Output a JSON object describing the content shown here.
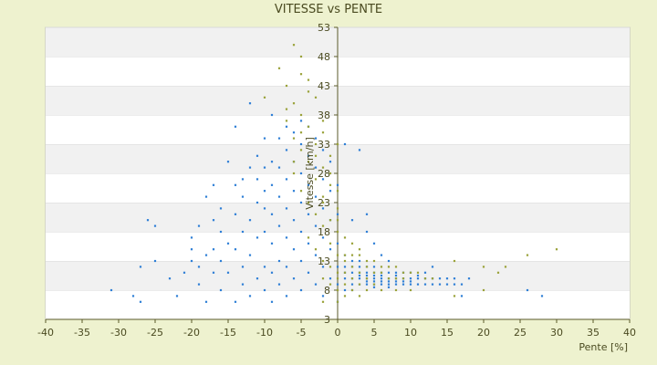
{
  "chart_data": {
    "type": "scatter",
    "title": "VITESSE vs PENTE",
    "xlabel": "Pente [%]",
    "ylabel": "Vitesse [km/h]",
    "xlim": [
      -40,
      40
    ],
    "ylim": [
      3,
      53
    ],
    "x_ticks": [
      "-40",
      "-35",
      "-30",
      "-25",
      "-20",
      "-15",
      "-10",
      "-5",
      "0",
      "5",
      "10",
      "15",
      "20",
      "25",
      "30",
      "35",
      "40"
    ],
    "y_ticks": [
      "3",
      "8",
      "13",
      "18",
      "23",
      "28",
      "33",
      "38",
      "43",
      "48",
      "53"
    ],
    "grid": true,
    "legend": "none",
    "series": [
      {
        "color": "#2f7fd6",
        "points": [
          [
            -31,
            8
          ],
          [
            -28,
            7
          ],
          [
            -27,
            6
          ],
          [
            -27,
            12
          ],
          [
            -26,
            20
          ],
          [
            -25,
            19
          ],
          [
            -25,
            13
          ],
          [
            -23,
            10
          ],
          [
            -22,
            7
          ],
          [
            -21,
            11
          ],
          [
            -20,
            13
          ],
          [
            -20,
            15
          ],
          [
            -20,
            17
          ],
          [
            -19,
            9
          ],
          [
            -19,
            12
          ],
          [
            -19,
            19
          ],
          [
            -18,
            6
          ],
          [
            -18,
            14
          ],
          [
            -18,
            24
          ],
          [
            -17,
            11
          ],
          [
            -17,
            15
          ],
          [
            -17,
            20
          ],
          [
            -17,
            26
          ],
          [
            -16,
            8
          ],
          [
            -16,
            13
          ],
          [
            -16,
            18
          ],
          [
            -16,
            22
          ],
          [
            -15,
            11
          ],
          [
            -15,
            16
          ],
          [
            -15,
            30
          ],
          [
            -14,
            6
          ],
          [
            -14,
            15
          ],
          [
            -14,
            21
          ],
          [
            -14,
            26
          ],
          [
            -13,
            9
          ],
          [
            -13,
            12
          ],
          [
            -13,
            18
          ],
          [
            -13,
            24
          ],
          [
            -13,
            27
          ],
          [
            -12,
            7
          ],
          [
            -12,
            14
          ],
          [
            -12,
            20
          ],
          [
            -12,
            29
          ],
          [
            -11,
            10
          ],
          [
            -11,
            17
          ],
          [
            -11,
            23
          ],
          [
            -11,
            27
          ],
          [
            -11,
            31
          ],
          [
            -10,
            8
          ],
          [
            -10,
            12
          ],
          [
            -10,
            18
          ],
          [
            -10,
            22
          ],
          [
            -10,
            25
          ],
          [
            -10,
            29
          ],
          [
            -10,
            34
          ],
          [
            -9,
            6
          ],
          [
            -9,
            11
          ],
          [
            -9,
            16
          ],
          [
            -9,
            21
          ],
          [
            -9,
            26
          ],
          [
            -9,
            30
          ],
          [
            -9,
            38
          ],
          [
            -8,
            9
          ],
          [
            -8,
            13
          ],
          [
            -8,
            19
          ],
          [
            -8,
            24
          ],
          [
            -8,
            29
          ],
          [
            -8,
            34
          ],
          [
            -7,
            7
          ],
          [
            -7,
            12
          ],
          [
            -7,
            17
          ],
          [
            -7,
            22
          ],
          [
            -7,
            27
          ],
          [
            -7,
            32
          ],
          [
            -7,
            36
          ],
          [
            -6,
            10
          ],
          [
            -6,
            15
          ],
          [
            -6,
            20
          ],
          [
            -6,
            25
          ],
          [
            -6,
            30
          ],
          [
            -6,
            35
          ],
          [
            -5,
            8
          ],
          [
            -5,
            13
          ],
          [
            -5,
            18
          ],
          [
            -5,
            23
          ],
          [
            -5,
            28
          ],
          [
            -5,
            33
          ],
          [
            -5,
            37
          ],
          [
            -4,
            11
          ],
          [
            -4,
            16
          ],
          [
            -4,
            21
          ],
          [
            -4,
            26
          ],
          [
            -4,
            31
          ],
          [
            -4,
            36
          ],
          [
            -3,
            9
          ],
          [
            -3,
            14
          ],
          [
            -3,
            19
          ],
          [
            -3,
            24
          ],
          [
            -3,
            29
          ],
          [
            -3,
            34
          ],
          [
            -2,
            7
          ],
          [
            -2,
            12
          ],
          [
            -2,
            17
          ],
          [
            -2,
            22
          ],
          [
            -2,
            27
          ],
          [
            -2,
            32
          ],
          [
            -1,
            10
          ],
          [
            -1,
            15
          ],
          [
            -1,
            20
          ],
          [
            -1,
            25
          ],
          [
            -1,
            30
          ],
          [
            0,
            6
          ],
          [
            0,
            9
          ],
          [
            0,
            12
          ],
          [
            0,
            16
          ],
          [
            0,
            21
          ],
          [
            0,
            26
          ],
          [
            1,
            8
          ],
          [
            1,
            10
          ],
          [
            1,
            12
          ],
          [
            1,
            14
          ],
          [
            1,
            11
          ],
          [
            2,
            9
          ],
          [
            2,
            10
          ],
          [
            2,
            11
          ],
          [
            2,
            12
          ],
          [
            2,
            13
          ],
          [
            2,
            8
          ],
          [
            3,
            9
          ],
          [
            3,
            10
          ],
          [
            3,
            11
          ],
          [
            3,
            12
          ],
          [
            3,
            13
          ],
          [
            3,
            10.5
          ],
          [
            4,
            9
          ],
          [
            4,
            10
          ],
          [
            4,
            11
          ],
          [
            4,
            12
          ],
          [
            4,
            9.5
          ],
          [
            4,
            10.5
          ],
          [
            5,
            8.5
          ],
          [
            5,
            9
          ],
          [
            5,
            10
          ],
          [
            5,
            11
          ],
          [
            5,
            12
          ],
          [
            5,
            9.5
          ],
          [
            5,
            10.5
          ],
          [
            6,
            9
          ],
          [
            6,
            10
          ],
          [
            6,
            11
          ],
          [
            6,
            9.5
          ],
          [
            6,
            10.5
          ],
          [
            7,
            8.5
          ],
          [
            7,
            9
          ],
          [
            7,
            10
          ],
          [
            7,
            11
          ],
          [
            7,
            9.5
          ],
          [
            8,
            9
          ],
          [
            8,
            10
          ],
          [
            8,
            11
          ],
          [
            8,
            9.5
          ],
          [
            8,
            10.5
          ],
          [
            9,
            9
          ],
          [
            9,
            10
          ],
          [
            9,
            11
          ],
          [
            9,
            9.5
          ],
          [
            10,
            9
          ],
          [
            10,
            10
          ],
          [
            10,
            11
          ],
          [
            10,
            9.5
          ],
          [
            11,
            9
          ],
          [
            11,
            10
          ],
          [
            11,
            10.5
          ],
          [
            12,
            9
          ],
          [
            12,
            10
          ],
          [
            12,
            11
          ],
          [
            13,
            9
          ],
          [
            13,
            10
          ],
          [
            13,
            12
          ],
          [
            14,
            9
          ],
          [
            14,
            10
          ],
          [
            15,
            9
          ],
          [
            15,
            10
          ],
          [
            16,
            9
          ],
          [
            16,
            10
          ],
          [
            17,
            9
          ],
          [
            17,
            7
          ],
          [
            18,
            10
          ],
          [
            3,
            32
          ],
          [
            1,
            33
          ],
          [
            2,
            20
          ],
          [
            4,
            18
          ],
          [
            4,
            21
          ],
          [
            5,
            16
          ],
          [
            6,
            14
          ],
          [
            7,
            13
          ],
          [
            26,
            8
          ],
          [
            28,
            7
          ],
          [
            -12,
            40
          ],
          [
            -14,
            36
          ]
        ]
      },
      {
        "color": "#9aa23a",
        "points": [
          [
            -6,
            50
          ],
          [
            -8,
            46
          ],
          [
            -5,
            48
          ],
          [
            -4,
            44
          ],
          [
            -7,
            43
          ],
          [
            -10,
            41
          ],
          [
            -6,
            40
          ],
          [
            -3,
            41
          ],
          [
            -5,
            38
          ],
          [
            -7,
            37
          ],
          [
            -4,
            36
          ],
          [
            -2,
            35
          ],
          [
            -6,
            34
          ],
          [
            -3,
            33
          ],
          [
            -5,
            32
          ],
          [
            -1,
            31
          ],
          [
            -4,
            30
          ],
          [
            -2,
            29
          ],
          [
            -6,
            28
          ],
          [
            -3,
            27
          ],
          [
            -1,
            26
          ],
          [
            -5,
            25
          ],
          [
            -2,
            24
          ],
          [
            -4,
            23
          ],
          [
            0,
            22
          ],
          [
            -3,
            21
          ],
          [
            -1,
            20
          ],
          [
            -2,
            19
          ],
          [
            0,
            18
          ],
          [
            -4,
            17
          ],
          [
            -1,
            16
          ],
          [
            -3,
            15
          ],
          [
            0,
            14
          ],
          [
            -2,
            13
          ],
          [
            1,
            13
          ],
          [
            -1,
            12
          ],
          [
            2,
            12
          ],
          [
            0,
            11
          ],
          [
            1,
            11
          ],
          [
            3,
            11
          ],
          [
            -2,
            10
          ],
          [
            0,
            10
          ],
          [
            2,
            10
          ],
          [
            4,
            10
          ],
          [
            -1,
            9
          ],
          [
            1,
            9
          ],
          [
            3,
            9
          ],
          [
            5,
            9
          ],
          [
            0,
            8
          ],
          [
            2,
            8
          ],
          [
            4,
            8
          ],
          [
            1,
            7
          ],
          [
            3,
            7
          ],
          [
            -2,
            6
          ],
          [
            0,
            6
          ],
          [
            1,
            14
          ],
          [
            2,
            14
          ],
          [
            3,
            14
          ],
          [
            4,
            13
          ],
          [
            5,
            13
          ],
          [
            6,
            12
          ],
          [
            7,
            12
          ],
          [
            8,
            12
          ],
          [
            9,
            11
          ],
          [
            10,
            11
          ],
          [
            11,
            11
          ],
          [
            12,
            10
          ],
          [
            13,
            10
          ],
          [
            4,
            12
          ],
          [
            5,
            11
          ],
          [
            6,
            11
          ],
          [
            7,
            10
          ],
          [
            8,
            10
          ],
          [
            9,
            10
          ],
          [
            6,
            8
          ],
          [
            8,
            8
          ],
          [
            10,
            8
          ],
          [
            16,
            13
          ],
          [
            20,
            12
          ],
          [
            22,
            11
          ],
          [
            23,
            12
          ],
          [
            26,
            14
          ],
          [
            30,
            15
          ],
          [
            16,
            7
          ],
          [
            20,
            8
          ],
          [
            -7,
            39
          ],
          [
            -5,
            35
          ],
          [
            -3,
            31
          ],
          [
            -6,
            30
          ],
          [
            -1,
            28
          ],
          [
            0,
            25
          ],
          [
            -2,
            23
          ],
          [
            0,
            20
          ],
          [
            1,
            17
          ],
          [
            2,
            16
          ],
          [
            3,
            15
          ],
          [
            -5,
            45
          ],
          [
            -4,
            42
          ],
          [
            0,
            33
          ],
          [
            -2,
            37
          ]
        ]
      }
    ]
  }
}
